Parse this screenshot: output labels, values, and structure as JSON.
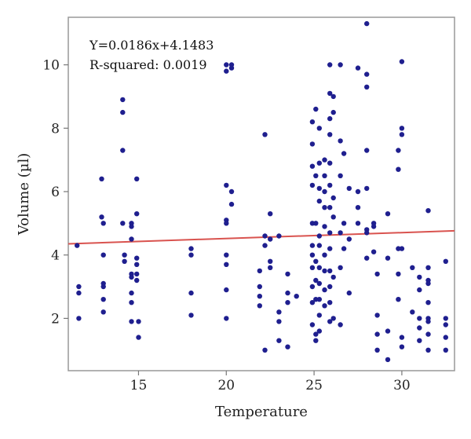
{
  "chart_data": {
    "type": "scatter",
    "xlabel": "Temperature",
    "ylabel": "Volume (µl)",
    "xlim": [
      11,
      33
    ],
    "ylim": [
      0.35,
      11.5
    ],
    "xticks": [
      15,
      20,
      25,
      30
    ],
    "yticks": [
      2,
      4,
      6,
      8,
      10
    ],
    "grid": false,
    "annotations": [
      "Y=0.0186x+4.1483",
      "R-squared: 0.0019"
    ],
    "point_color": "#1f1f8f",
    "fit_color": "#d9534f",
    "fit_line": {
      "slope": 0.0186,
      "intercept": 4.1483
    },
    "series": [
      {
        "points": [
          [
            11.5,
            4.3
          ],
          [
            11.6,
            3.0
          ],
          [
            11.6,
            2.8
          ],
          [
            11.6,
            2.0
          ],
          [
            12.9,
            6.4
          ],
          [
            12.9,
            5.2
          ],
          [
            13.0,
            5.0
          ],
          [
            13.0,
            4.0
          ],
          [
            13.0,
            3.1
          ],
          [
            13.0,
            3.0
          ],
          [
            13.0,
            2.6
          ],
          [
            13.0,
            2.2
          ],
          [
            14.1,
            8.9
          ],
          [
            14.1,
            8.5
          ],
          [
            14.1,
            7.3
          ],
          [
            14.1,
            5.0
          ],
          [
            14.2,
            4.0
          ],
          [
            14.2,
            3.8
          ],
          [
            14.6,
            5.0
          ],
          [
            14.6,
            4.9
          ],
          [
            14.6,
            4.5
          ],
          [
            14.6,
            3.4
          ],
          [
            14.6,
            3.3
          ],
          [
            14.6,
            2.8
          ],
          [
            14.6,
            2.5
          ],
          [
            14.6,
            1.9
          ],
          [
            14.9,
            6.4
          ],
          [
            14.9,
            5.3
          ],
          [
            14.9,
            3.9
          ],
          [
            14.9,
            3.7
          ],
          [
            14.9,
            3.4
          ],
          [
            14.9,
            3.2
          ],
          [
            15.0,
            1.9
          ],
          [
            15.0,
            1.4
          ],
          [
            18.0,
            4.2
          ],
          [
            18.0,
            4.0
          ],
          [
            18.0,
            2.8
          ],
          [
            18.0,
            2.1
          ],
          [
            20.0,
            10.0
          ],
          [
            20.0,
            9.8
          ],
          [
            20.0,
            6.2
          ],
          [
            20.0,
            5.1
          ],
          [
            20.0,
            5.0
          ],
          [
            20.0,
            4.0
          ],
          [
            20.0,
            3.7
          ],
          [
            20.0,
            2.9
          ],
          [
            20.0,
            2.0
          ],
          [
            20.3,
            10.0
          ],
          [
            20.3,
            9.9
          ],
          [
            20.3,
            6.0
          ],
          [
            20.3,
            5.6
          ],
          [
            21.9,
            3.5
          ],
          [
            21.9,
            3.0
          ],
          [
            21.9,
            2.7
          ],
          [
            21.9,
            2.4
          ],
          [
            22.2,
            7.8
          ],
          [
            22.2,
            4.6
          ],
          [
            22.2,
            4.3
          ],
          [
            22.2,
            1.0
          ],
          [
            22.5,
            5.3
          ],
          [
            22.5,
            4.5
          ],
          [
            22.5,
            3.8
          ],
          [
            22.5,
            3.6
          ],
          [
            23.0,
            4.6
          ],
          [
            23.0,
            2.2
          ],
          [
            23.0,
            1.9
          ],
          [
            23.0,
            1.3
          ],
          [
            23.5,
            3.4
          ],
          [
            23.5,
            2.8
          ],
          [
            23.5,
            2.5
          ],
          [
            23.5,
            1.1
          ],
          [
            24.0,
            2.7
          ],
          [
            24.9,
            8.2
          ],
          [
            24.9,
            7.5
          ],
          [
            24.9,
            6.8
          ],
          [
            24.9,
            6.2
          ],
          [
            24.9,
            5.0
          ],
          [
            24.9,
            4.3
          ],
          [
            24.9,
            4.0
          ],
          [
            24.9,
            3.6
          ],
          [
            24.9,
            3.0
          ],
          [
            24.9,
            2.5
          ],
          [
            24.9,
            1.8
          ],
          [
            25.1,
            8.6
          ],
          [
            25.1,
            6.5
          ],
          [
            25.1,
            5.0
          ],
          [
            25.1,
            3.8
          ],
          [
            25.1,
            3.2
          ],
          [
            25.1,
            2.6
          ],
          [
            25.1,
            1.5
          ],
          [
            25.1,
            1.3
          ],
          [
            25.3,
            8.0
          ],
          [
            25.3,
            6.9
          ],
          [
            25.3,
            6.1
          ],
          [
            25.3,
            5.7
          ],
          [
            25.3,
            4.6
          ],
          [
            25.3,
            4.3
          ],
          [
            25.3,
            3.6
          ],
          [
            25.3,
            3.1
          ],
          [
            25.3,
            2.6
          ],
          [
            25.3,
            2.1
          ],
          [
            25.3,
            1.6
          ],
          [
            25.6,
            7.0
          ],
          [
            25.6,
            6.5
          ],
          [
            25.6,
            6.0
          ],
          [
            25.6,
            5.5
          ],
          [
            25.6,
            4.9
          ],
          [
            25.6,
            4.0
          ],
          [
            25.6,
            3.5
          ],
          [
            25.6,
            2.9
          ],
          [
            25.6,
            2.4
          ],
          [
            25.9,
            10.0
          ],
          [
            25.9,
            9.1
          ],
          [
            25.9,
            8.3
          ],
          [
            25.9,
            7.8
          ],
          [
            25.9,
            6.9
          ],
          [
            25.9,
            6.2
          ],
          [
            25.9,
            5.5
          ],
          [
            25.9,
            4.7
          ],
          [
            25.9,
            4.2
          ],
          [
            25.9,
            3.5
          ],
          [
            25.9,
            3.0
          ],
          [
            25.9,
            2.5
          ],
          [
            25.9,
            1.9
          ],
          [
            26.1,
            9.0
          ],
          [
            26.1,
            8.5
          ],
          [
            26.1,
            5.8
          ],
          [
            26.1,
            5.2
          ],
          [
            26.1,
            3.3
          ],
          [
            26.1,
            2.0
          ],
          [
            26.5,
            10.0
          ],
          [
            26.5,
            7.6
          ],
          [
            26.5,
            6.5
          ],
          [
            26.5,
            4.7
          ],
          [
            26.5,
            3.6
          ],
          [
            26.5,
            1.8
          ],
          [
            26.7,
            7.2
          ],
          [
            26.7,
            5.0
          ],
          [
            26.7,
            4.2
          ],
          [
            27.0,
            6.1
          ],
          [
            27.0,
            4.5
          ],
          [
            27.0,
            2.8
          ],
          [
            27.5,
            9.9
          ],
          [
            27.5,
            6.0
          ],
          [
            27.5,
            5.5
          ],
          [
            27.5,
            5.0
          ],
          [
            28.0,
            11.3
          ],
          [
            28.0,
            9.7
          ],
          [
            28.0,
            9.3
          ],
          [
            28.0,
            7.3
          ],
          [
            28.0,
            6.1
          ],
          [
            28.0,
            4.8
          ],
          [
            28.0,
            4.7
          ],
          [
            28.0,
            3.9
          ],
          [
            28.4,
            5.0
          ],
          [
            28.4,
            4.9
          ],
          [
            28.4,
            4.1
          ],
          [
            28.6,
            3.4
          ],
          [
            28.6,
            2.1
          ],
          [
            28.6,
            1.5
          ],
          [
            28.6,
            1.0
          ],
          [
            29.2,
            5.3
          ],
          [
            29.2,
            3.9
          ],
          [
            29.2,
            1.6
          ],
          [
            29.2,
            0.7
          ],
          [
            29.8,
            7.3
          ],
          [
            29.8,
            6.7
          ],
          [
            29.8,
            4.2
          ],
          [
            29.8,
            3.4
          ],
          [
            29.8,
            2.6
          ],
          [
            30.0,
            10.1
          ],
          [
            30.0,
            8.0
          ],
          [
            30.0,
            7.8
          ],
          [
            30.0,
            4.2
          ],
          [
            30.0,
            1.4
          ],
          [
            30.0,
            1.1
          ],
          [
            30.6,
            3.6
          ],
          [
            30.6,
            2.2
          ],
          [
            31.0,
            3.3
          ],
          [
            31.0,
            2.9
          ],
          [
            31.0,
            2.0
          ],
          [
            31.0,
            1.7
          ],
          [
            31.0,
            1.3
          ],
          [
            31.5,
            5.4
          ],
          [
            31.5,
            3.6
          ],
          [
            31.5,
            3.2
          ],
          [
            31.5,
            3.1
          ],
          [
            31.5,
            2.5
          ],
          [
            31.5,
            2.0
          ],
          [
            31.5,
            1.9
          ],
          [
            31.5,
            1.5
          ],
          [
            31.5,
            1.0
          ],
          [
            32.5,
            3.8
          ],
          [
            32.5,
            2.0
          ],
          [
            32.5,
            1.8
          ],
          [
            32.5,
            1.4
          ],
          [
            32.5,
            1.0
          ]
        ]
      }
    ]
  }
}
